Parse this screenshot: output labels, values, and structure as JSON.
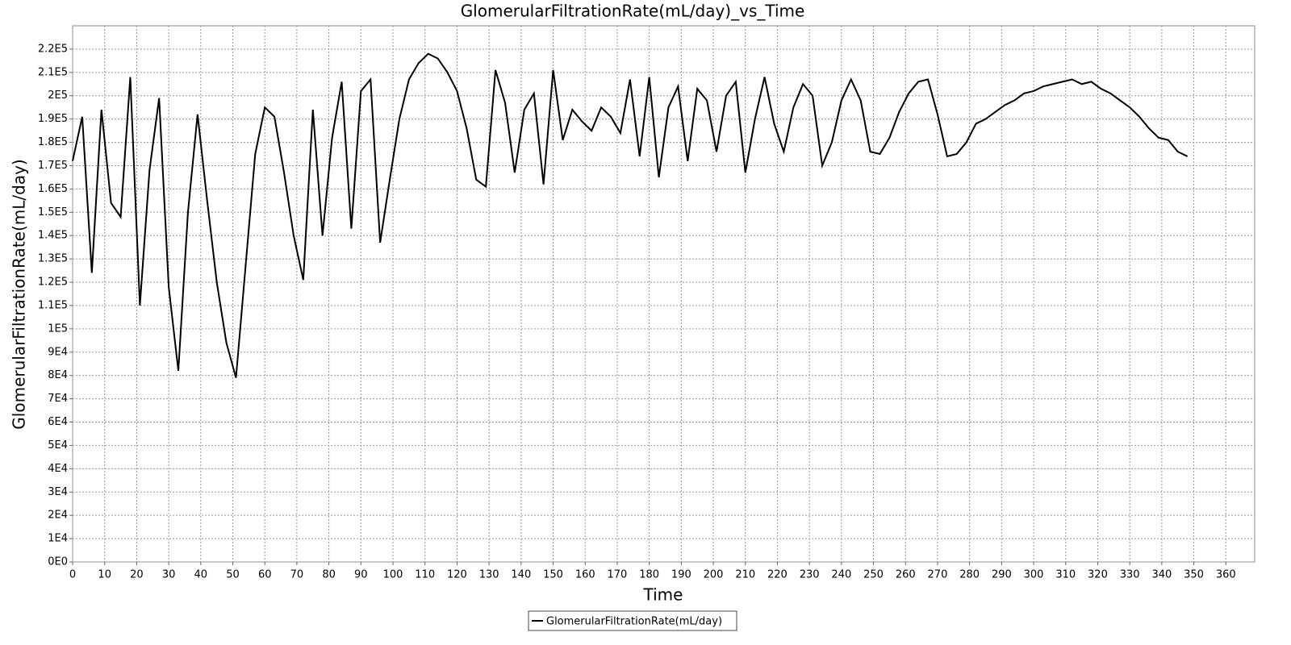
{
  "chart_data": {
    "type": "line",
    "title": "GlomerularFiltrationRate(mL/day)_vs_Time",
    "x_label": "Time",
    "y_label": "GlomerularFiltrationRate(mL/day)",
    "x": [
      0,
      3,
      6,
      9,
      12,
      15,
      18,
      21,
      24,
      27,
      30,
      33,
      36,
      39,
      42,
      45,
      48,
      51,
      54,
      57,
      60,
      63,
      66,
      69,
      72,
      75,
      78,
      81,
      84,
      87,
      90,
      93,
      96,
      99,
      102,
      105,
      108,
      111,
      114,
      117,
      120,
      123,
      126,
      129,
      132,
      135,
      138,
      141,
      144,
      147,
      150,
      153,
      156,
      159,
      162,
      165,
      168,
      171,
      174,
      177,
      180,
      183,
      186,
      189,
      192,
      195,
      198,
      201,
      204,
      207,
      210,
      213,
      216,
      219,
      222,
      225,
      228,
      231,
      234,
      237,
      240,
      243,
      246,
      249,
      252,
      255,
      258,
      261,
      264,
      267,
      270,
      273,
      276,
      279,
      282,
      285,
      288,
      291,
      294,
      297,
      300,
      303,
      306,
      309,
      312,
      315,
      318,
      321,
      324,
      327,
      330,
      333,
      336,
      339,
      342,
      345,
      348
    ],
    "series": [
      {
        "name": "GlomerularFiltrationRate(mL/day)",
        "color": "#000000",
        "values": [
          172000,
          191000,
          124000,
          194000,
          154000,
          148000,
          208000,
          110000,
          168000,
          199000,
          118000,
          82000,
          150000,
          192000,
          155000,
          120000,
          94000,
          79000,
          127000,
          175000,
          195000,
          191000,
          167000,
          140000,
          121000,
          194000,
          140000,
          182000,
          206000,
          143000,
          202000,
          207000,
          137000,
          164000,
          190000,
          207000,
          214000,
          218000,
          216000,
          210000,
          202000,
          186000,
          164000,
          161000,
          211000,
          197000,
          167000,
          194000,
          201000,
          162000,
          211000,
          181000,
          194000,
          189000,
          185000,
          195000,
          191000,
          184000,
          207000,
          174000,
          208000,
          165000,
          195000,
          204000,
          172000,
          203000,
          198000,
          176000,
          200000,
          206000,
          167000,
          190000,
          208000,
          188000,
          176000,
          195000,
          205000,
          200000,
          170000,
          180000,
          198000,
          207000,
          198000,
          176000,
          175000,
          182000,
          193000,
          201000,
          206000,
          207000,
          192000,
          174000,
          175000,
          180000,
          188000,
          190000,
          193000,
          196000,
          198000,
          201000,
          202000,
          204000,
          205000,
          206000,
          207000,
          205000,
          206000,
          203000,
          201000,
          198000,
          195000,
          191000,
          186000,
          182000,
          181000,
          176000,
          174000
        ]
      }
    ],
    "xlim": [
      0,
      369
    ],
    "xticks": [
      0,
      10,
      20,
      30,
      40,
      50,
      60,
      70,
      80,
      90,
      100,
      110,
      120,
      130,
      140,
      150,
      160,
      170,
      180,
      190,
      200,
      210,
      220,
      230,
      240,
      250,
      260,
      270,
      280,
      290,
      300,
      310,
      320,
      330,
      340,
      350,
      360
    ],
    "ylim": [
      0,
      230000
    ],
    "yticks": [
      {
        "value": 0,
        "label": "0E0"
      },
      {
        "value": 10000,
        "label": "1E4"
      },
      {
        "value": 20000,
        "label": "2E4"
      },
      {
        "value": 30000,
        "label": "3E4"
      },
      {
        "value": 40000,
        "label": "4E4"
      },
      {
        "value": 50000,
        "label": "5E4"
      },
      {
        "value": 60000,
        "label": "6E4"
      },
      {
        "value": 70000,
        "label": "7E4"
      },
      {
        "value": 80000,
        "label": "8E4"
      },
      {
        "value": 90000,
        "label": "9E4"
      },
      {
        "value": 100000,
        "label": "1E5"
      },
      {
        "value": 110000,
        "label": "1.1E5"
      },
      {
        "value": 120000,
        "label": "1.2E5"
      },
      {
        "value": 130000,
        "label": "1.3E5"
      },
      {
        "value": 140000,
        "label": "1.4E5"
      },
      {
        "value": 150000,
        "label": "1.5E5"
      },
      {
        "value": 160000,
        "label": "1.6E5"
      },
      {
        "value": 170000,
        "label": "1.7E5"
      },
      {
        "value": 180000,
        "label": "1.8E5"
      },
      {
        "value": 190000,
        "label": "1.9E5"
      },
      {
        "value": 200000,
        "label": "2E5"
      },
      {
        "value": 210000,
        "label": "2.1E5"
      },
      {
        "value": 220000,
        "label": "2.2E5"
      }
    ],
    "grid": true,
    "legend": "bottom"
  }
}
